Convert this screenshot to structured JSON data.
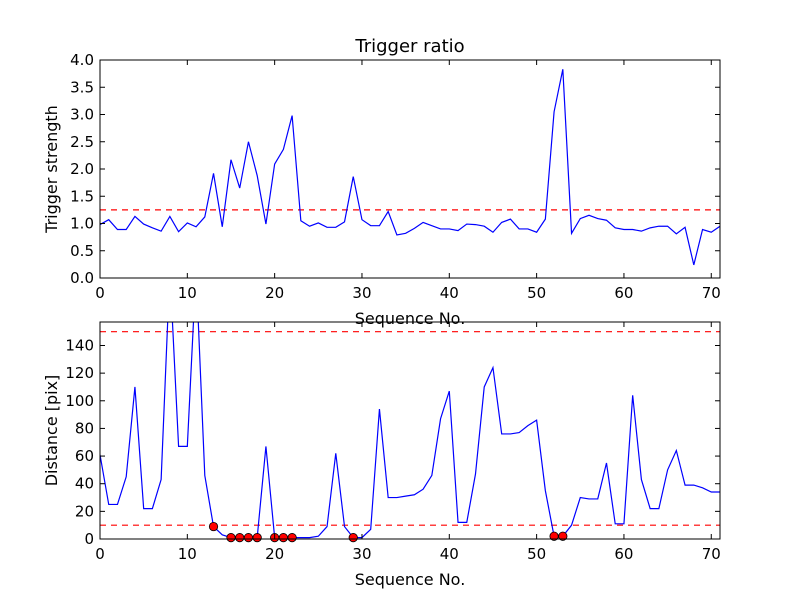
{
  "chart_data": [
    {
      "type": "line",
      "title": "Trigger ratio",
      "xlabel": "Sequence No.",
      "ylabel": "Trigger strength",
      "xlim": [
        0,
        71
      ],
      "ylim": [
        0,
        4.0
      ],
      "xticks": [
        "0",
        "10",
        "20",
        "30",
        "40",
        "50",
        "60",
        "70"
      ],
      "xtick_values": [
        0,
        10,
        20,
        30,
        40,
        50,
        60,
        70
      ],
      "yticks": [
        "0.0",
        "0.5",
        "1.0",
        "1.5",
        "2.0",
        "2.5",
        "3.0",
        "3.5",
        "4.0"
      ],
      "ytick_values": [
        0,
        0.5,
        1.0,
        1.5,
        2.0,
        2.5,
        3.0,
        3.5,
        4.0
      ],
      "grid": false,
      "series": [
        {
          "color": "#0000ff",
          "x": [
            0,
            1,
            2,
            3,
            4,
            5,
            6,
            7,
            8,
            9,
            10,
            11,
            12,
            13,
            14,
            15,
            16,
            17,
            18,
            19,
            20,
            21,
            22,
            23,
            24,
            25,
            26,
            27,
            28,
            29,
            30,
            31,
            32,
            33,
            34,
            35,
            36,
            37,
            38,
            39,
            40,
            41,
            42,
            43,
            44,
            45,
            46,
            47,
            48,
            49,
            50,
            51,
            52,
            53,
            54,
            55,
            56,
            57,
            58,
            59,
            60,
            61,
            62,
            63,
            64,
            65,
            66,
            67,
            68,
            69,
            70,
            71
          ],
          "values": [
            0.98,
            1.07,
            0.89,
            0.89,
            1.13,
            0.99,
            0.92,
            0.86,
            1.13,
            0.85,
            1.01,
            0.94,
            1.12,
            1.92,
            0.94,
            2.17,
            1.65,
            2.5,
            1.88,
            0.99,
            2.09,
            2.36,
            2.98,
            1.05,
            0.95,
            1.01,
            0.93,
            0.93,
            1.03,
            1.86,
            1.07,
            0.96,
            0.96,
            1.22,
            0.79,
            0.82,
            0.91,
            1.02,
            0.96,
            0.9,
            0.9,
            0.87,
            0.99,
            0.98,
            0.95,
            0.84,
            1.02,
            1.08,
            0.9,
            0.9,
            0.84,
            1.08,
            3.05,
            3.83,
            0.82,
            1.09,
            1.15,
            1.09,
            1.06,
            0.92,
            0.89,
            0.89,
            0.86,
            0.92,
            0.95,
            0.95,
            0.81,
            0.93,
            0.24,
            0.89,
            0.84,
            0.95
          ]
        }
      ],
      "hlines": [
        {
          "y": 1.25,
          "color": "#ff0000",
          "style": "dashed"
        }
      ]
    },
    {
      "type": "line",
      "title": "",
      "xlabel": "Sequence No.",
      "ylabel": "Distance [pix]",
      "xlim": [
        0,
        71
      ],
      "ylim": [
        0,
        157
      ],
      "xticks": [
        "0",
        "10",
        "20",
        "30",
        "40",
        "50",
        "60",
        "70"
      ],
      "xtick_values": [
        0,
        10,
        20,
        30,
        40,
        50,
        60,
        70
      ],
      "yticks": [
        "0",
        "20",
        "40",
        "60",
        "80",
        "100",
        "120",
        "140"
      ],
      "ytick_values": [
        0,
        20,
        40,
        60,
        80,
        100,
        120,
        140
      ],
      "grid": false,
      "series": [
        {
          "color": "#0000ff",
          "x": [
            0,
            1,
            2,
            3,
            4,
            5,
            6,
            7,
            8,
            9,
            10,
            11,
            12,
            13,
            14,
            15,
            16,
            17,
            18,
            19,
            20,
            21,
            22,
            23,
            24,
            25,
            26,
            27,
            28,
            29,
            30,
            31,
            32,
            33,
            34,
            35,
            36,
            37,
            38,
            39,
            40,
            41,
            42,
            43,
            44,
            45,
            46,
            47,
            48,
            49,
            50,
            51,
            52,
            53,
            54,
            55,
            56,
            57,
            58,
            59,
            60,
            61,
            62,
            63,
            64,
            65,
            66,
            67,
            68,
            69,
            70,
            71
          ],
          "values": [
            61,
            25,
            25,
            45,
            110,
            22,
            22,
            43,
            195,
            67,
            67,
            195,
            46,
            9,
            3,
            1,
            1,
            1,
            1,
            67,
            1,
            1,
            1,
            1,
            1,
            2,
            9,
            62,
            9,
            1,
            1,
            7,
            94,
            30,
            30,
            31,
            32,
            36,
            46,
            87,
            107,
            12,
            12,
            47,
            110,
            124,
            76,
            76,
            77,
            82,
            86,
            35,
            2,
            2,
            10,
            30,
            29,
            29,
            55,
            11,
            11,
            104,
            43,
            22,
            22,
            50,
            64,
            39,
            39,
            37,
            34,
            34
          ]
        },
        {
          "name": "",
          "type": "scatter",
          "color": "#ff0000",
          "x": [
            13,
            15,
            16,
            17,
            18,
            20,
            21,
            22,
            29,
            52,
            53
          ],
          "values": [
            9,
            1,
            1,
            1,
            1,
            1,
            1,
            1,
            1,
            2,
            2
          ]
        }
      ],
      "hlines": [
        {
          "y": 150,
          "color": "#ff0000",
          "style": "dashed"
        },
        {
          "y": 10,
          "color": "#ff0000",
          "style": "dashed"
        }
      ]
    }
  ]
}
